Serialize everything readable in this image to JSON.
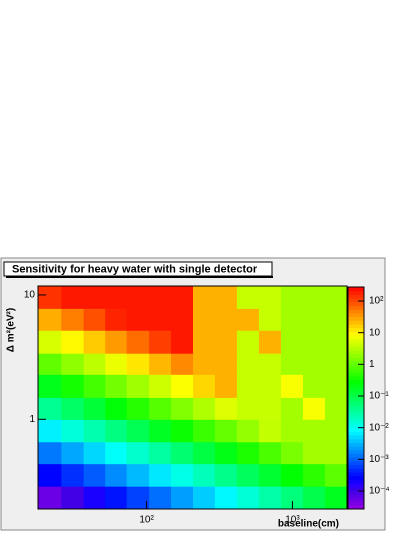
{
  "chart_data": {
    "type": "heatmap",
    "title": "Sensitivity for heavy water with single detector",
    "x_label": "baseline(cm)",
    "y_label": "Δ m²(eV²)",
    "x_log": true,
    "y_log": true,
    "z_log": true,
    "xlim": [
      18,
      2366
    ],
    "ylim": [
      0.19,
      11.8
    ],
    "zlim": [
      2.7e-05,
      277
    ],
    "xticks": [
      {
        "value": 100,
        "label": "10²"
      },
      {
        "value": 1000,
        "label": "10³"
      }
    ],
    "yticks": [
      1,
      10
    ],
    "zticks": [
      {
        "value": 0.0001,
        "label": "10⁻⁴"
      },
      {
        "value": 0.001,
        "label": "10⁻³"
      },
      {
        "value": 0.01,
        "label": "10⁻²"
      },
      {
        "value": 0.1,
        "label": "10⁻¹"
      },
      1,
      10,
      {
        "value": 100,
        "label": "10²"
      }
    ],
    "x_edges": [
      18,
      26,
      37,
      52,
      73,
      104,
      147,
      208,
      294,
      416,
      589,
      834,
      1180,
      1671,
      2366
    ],
    "y_edges": [
      0.19,
      0.29,
      0.44,
      0.66,
      1.0,
      1.5,
      2.3,
      3.4,
      5.2,
      7.8,
      11.8
    ],
    "z": [
      [
        5.4e-05,
        0.0001,
        0.00019,
        0.00035,
        0.00066,
        0.0012,
        0.0023,
        0.0043,
        0.0079,
        0.015,
        0.028,
        0.052,
        0.098,
        0.18
      ],
      [
        0.00028,
        0.00051,
        0.00095,
        0.0018,
        0.0034,
        0.0063,
        0.012,
        0.022,
        0.042,
        0.078,
        0.14,
        0.27,
        0.5,
        0.95
      ],
      [
        0.0014,
        0.0026,
        0.005,
        0.0093,
        0.017,
        0.032,
        0.06,
        0.11,
        0.21,
        0.4,
        0.74,
        1.4,
        2.5,
        2.5
      ],
      [
        0.0072,
        0.014,
        0.026,
        0.048,
        0.089,
        0.17,
        0.32,
        0.59,
        1.1,
        2.0,
        3.8,
        2.5,
        2.5,
        2.5
      ],
      [
        0.038,
        0.071,
        0.13,
        0.25,
        0.46,
        0.87,
        1.6,
        3.0,
        5.6,
        4,
        4,
        2.5,
        8,
        2.5
      ],
      [
        0.19,
        0.36,
        0.68,
        1.3,
        2.4,
        4.5,
        8.3,
        15,
        25,
        4,
        4,
        8,
        2.5,
        2.5
      ],
      [
        1.0,
        1.9,
        3.5,
        6.6,
        12,
        23,
        43,
        25,
        25,
        4,
        4,
        2.5,
        2.5,
        2.5
      ],
      [
        5.1,
        9.5,
        18,
        34,
        63,
        120,
        200,
        25,
        25,
        4,
        25,
        2.5,
        2.5,
        2.5
      ],
      [
        26,
        50,
        93,
        170,
        200,
        200,
        200,
        25,
        25,
        25,
        4,
        2.5,
        2.5,
        2.5
      ],
      [
        140,
        200,
        200,
        200,
        200,
        200,
        200,
        25,
        25,
        4,
        4,
        2.5,
        2.5,
        2.5
      ]
    ]
  }
}
